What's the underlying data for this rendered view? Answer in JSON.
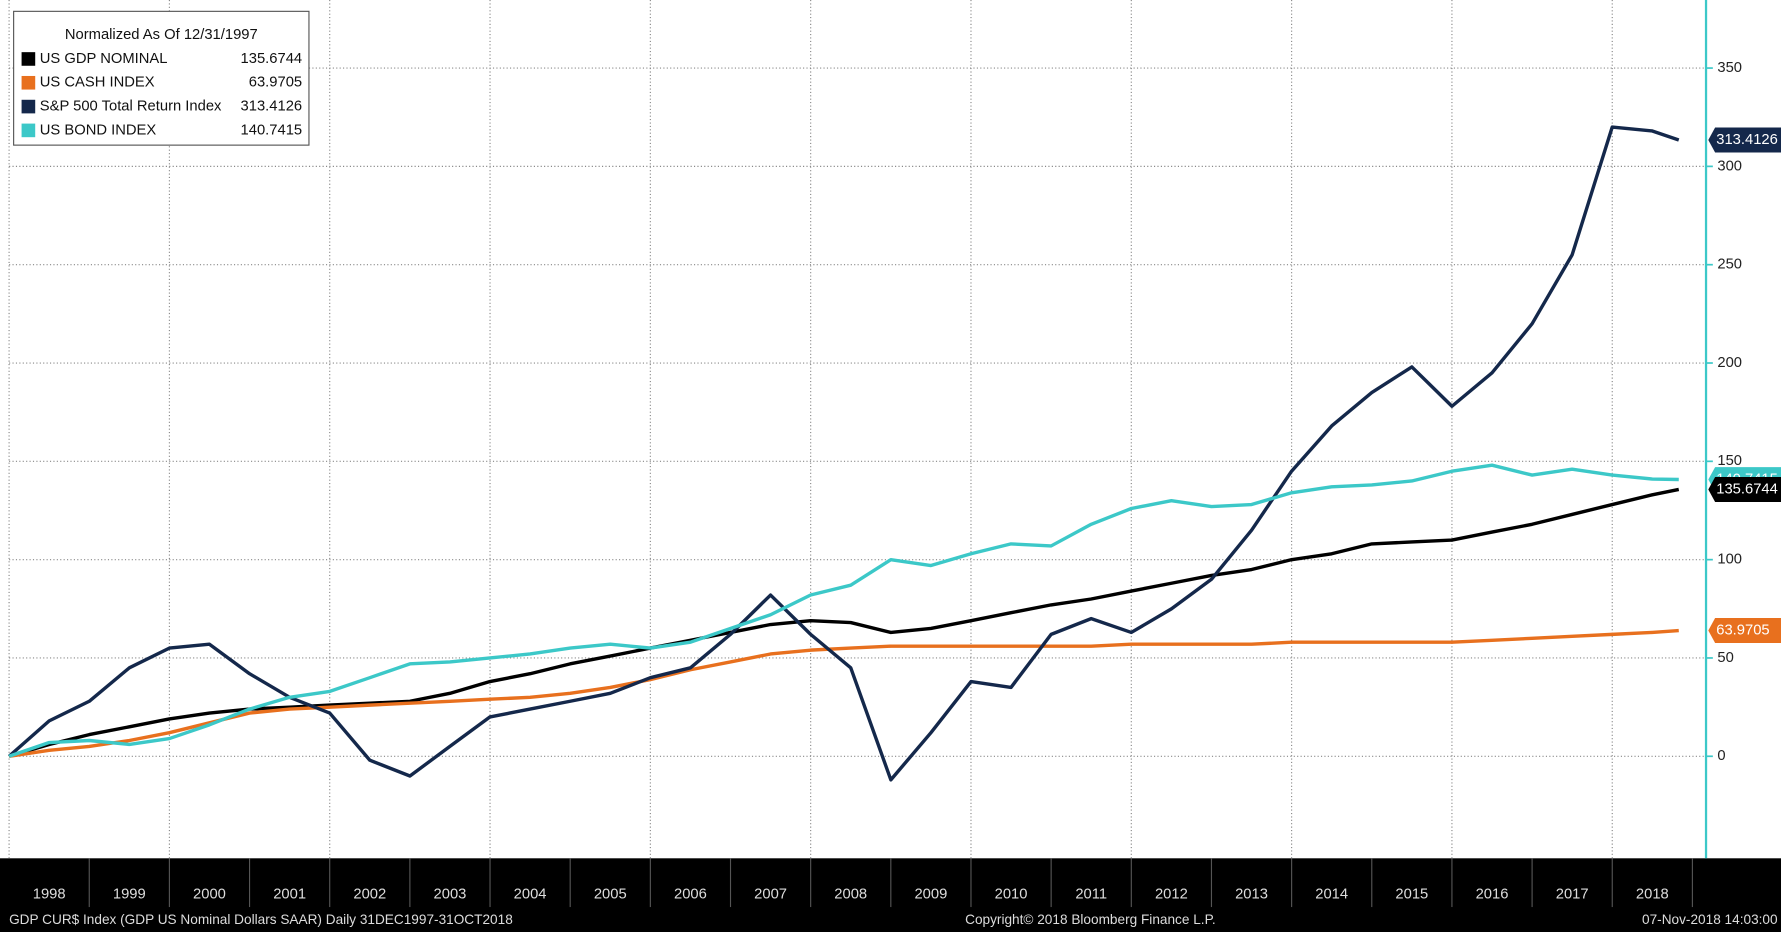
{
  "chart_data": {
    "type": "line",
    "legend_title": "Normalized As Of 12/31/1997",
    "x": [
      1998,
      1998.5,
      1999,
      1999.5,
      2000,
      2000.5,
      2001,
      2001.5,
      2002,
      2002.5,
      2003,
      2003.5,
      2004,
      2004.5,
      2005,
      2005.5,
      2006,
      2006.5,
      2007,
      2007.5,
      2008,
      2008.5,
      2009,
      2009.5,
      2010,
      2010.5,
      2011,
      2011.5,
      2012,
      2012.5,
      2013,
      2013.5,
      2014,
      2014.5,
      2015,
      2015.5,
      2016,
      2016.5,
      2017,
      2017.5,
      2018,
      2018.5,
      2018.83
    ],
    "series": [
      {
        "name": "US GDP NOMINAL",
        "color": "#000000",
        "values": [
          0,
          6,
          11,
          15,
          19,
          22,
          24,
          25,
          26,
          27,
          28,
          32,
          38,
          42,
          47,
          51,
          55,
          59,
          63,
          67,
          69,
          68,
          63,
          65,
          69,
          73,
          77,
          80,
          84,
          88,
          92,
          95,
          100,
          103,
          108,
          109,
          110,
          114,
          118,
          123,
          128,
          133,
          135.6744
        ]
      },
      {
        "name": "US CASH INDEX",
        "color": "#e8701e",
        "values": [
          0,
          3,
          5,
          8,
          12,
          17,
          22,
          24,
          25,
          26,
          27,
          28,
          29,
          30,
          32,
          35,
          39,
          44,
          48,
          52,
          54,
          55,
          56,
          56,
          56,
          56,
          56,
          56,
          57,
          57,
          57,
          57,
          58,
          58,
          58,
          58,
          58,
          59,
          60,
          61,
          62,
          63,
          63.9705
        ]
      },
      {
        "name": "S&P 500 Total Return Index",
        "color": "#14284b",
        "values": [
          0,
          18,
          28,
          45,
          55,
          57,
          42,
          30,
          22,
          -2,
          -10,
          5,
          20,
          24,
          28,
          32,
          40,
          45,
          62,
          82,
          62,
          45,
          -12,
          12,
          38,
          35,
          62,
          70,
          63,
          75,
          90,
          115,
          145,
          168,
          185,
          198,
          178,
          195,
          220,
          255,
          320,
          318,
          313.4126
        ]
      },
      {
        "name": "US BOND INDEX",
        "color": "#3cc8c8",
        "values": [
          0,
          7,
          8,
          6,
          9,
          16,
          24,
          30,
          33,
          40,
          47,
          48,
          50,
          52,
          55,
          57,
          55,
          58,
          65,
          72,
          82,
          87,
          100,
          97,
          103,
          108,
          107,
          118,
          126,
          130,
          127,
          128,
          134,
          137,
          138,
          140,
          145,
          148,
          143,
          146,
          143,
          141,
          140.7415
        ]
      }
    ],
    "xlim": [
      1998,
      2019.17
    ],
    "xticks": [
      {
        "value": 1998,
        "label": "1998"
      },
      {
        "value": 1999,
        "label": "1999"
      },
      {
        "value": 2000,
        "label": "2000"
      },
      {
        "value": 2001,
        "label": "2001"
      },
      {
        "value": 2002,
        "label": "2002"
      },
      {
        "value": 2003,
        "label": "2003"
      },
      {
        "value": 2004,
        "label": "2004"
      },
      {
        "value": 2005,
        "label": "2005"
      },
      {
        "value": 2006,
        "label": "2006"
      },
      {
        "value": 2007,
        "label": "2007"
      },
      {
        "value": 2008,
        "label": "2008"
      },
      {
        "value": 2009,
        "label": "2009"
      },
      {
        "value": 2010,
        "label": "2010"
      },
      {
        "value": 2011,
        "label": "2011"
      },
      {
        "value": 2012,
        "label": "2012"
      },
      {
        "value": 2013,
        "label": "2013"
      },
      {
        "value": 2014,
        "label": "2014"
      },
      {
        "value": 2015,
        "label": "2015"
      },
      {
        "value": 2016,
        "label": "2016"
      },
      {
        "value": 2017,
        "label": "2017"
      },
      {
        "value": 2018,
        "label": "2018"
      }
    ],
    "ylim": [
      -49,
      380
    ],
    "yticks": [
      0,
      50,
      100,
      150,
      200,
      250,
      300,
      350
    ],
    "grid": true,
    "legend": "upper left",
    "footer_left": "GDP CUR$ Index (GDP US Nominal Dollars SAAR)  Daily 31DEC1997-31OCT2018",
    "footer_center": "Copyright© 2018 Bloomberg Finance L.P.",
    "footer_right": "07-Nov-2018 14:03:00"
  }
}
